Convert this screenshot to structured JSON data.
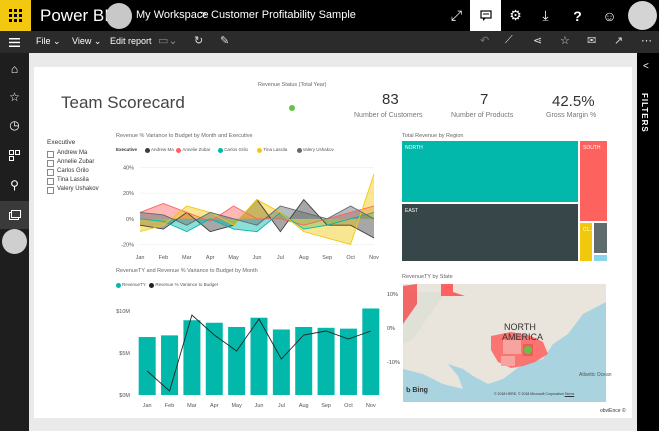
{
  "topbar": {
    "brand": "Power BI",
    "workspace": "My Workspace",
    "separator": ">",
    "report": "Customer Profitability Sample",
    "icons": [
      "expand-icon",
      "comment-icon",
      "gear-icon",
      "download-icon",
      "help-icon",
      "smiley-icon"
    ]
  },
  "commandbar": {
    "file": "File",
    "view": "View",
    "edit": "Edit report",
    "icons_left": [
      "screen-icon",
      "refresh-icon",
      "pin-icon"
    ],
    "icons_right": [
      "undo-icon",
      "chart-icon",
      "share-icon",
      "star-icon",
      "mail-icon",
      "export-icon",
      "more-icon"
    ]
  },
  "rail": [
    "home-icon",
    "star-icon",
    "clock-icon",
    "grid-icon",
    "people-icon",
    "workspace-icon"
  ],
  "filters": {
    "label": "FILTERS",
    "chevron": "<"
  },
  "report": {
    "title": "Team Scorecard",
    "status_title": "Revenue Status (Total Year)",
    "status_color": "#66c247",
    "kpis": [
      {
        "value": "83",
        "label": "Number of Customers"
      },
      {
        "value": "7",
        "label": "Number of Products"
      },
      {
        "value": "42.5%",
        "label": "Gross Margin %"
      }
    ],
    "slicer": {
      "title": "Executive",
      "items": [
        "Andrew Ma",
        "Annelie Zubar",
        "Carlos Grilo",
        "Tina Lassila",
        "Valery Ushakov"
      ]
    },
    "footer": "obviEnce ©"
  },
  "chart_data": [
    {
      "type": "area",
      "title": "Revenue % Variance to Budget by Month and Executive",
      "legend_title": "Executive",
      "categories": [
        "Jan",
        "Feb",
        "Mar",
        "Apr",
        "May",
        "Jun",
        "Jul",
        "Aug",
        "Sep",
        "Oct",
        "Nov"
      ],
      "yticks": [
        "40%",
        "20%",
        "0%",
        "-20%"
      ],
      "ylim": [
        -20,
        40
      ],
      "series": [
        {
          "name": "Andrew Ma",
          "color": "#3c3c3c",
          "values": [
            -5,
            -8,
            5,
            -10,
            -5,
            15,
            -10,
            15,
            -5,
            -5,
            -15
          ]
        },
        {
          "name": "Annelie Zubar",
          "color": "#fd625e",
          "values": [
            5,
            12,
            5,
            -2,
            10,
            0,
            0,
            -5,
            0,
            5,
            10
          ]
        },
        {
          "name": "Carlos Grilo",
          "color": "#01b8aa",
          "values": [
            0,
            -2,
            -10,
            0,
            -8,
            -10,
            5,
            -8,
            -5,
            0,
            5
          ]
        },
        {
          "name": "Tina Lassila",
          "color": "#f2c80f",
          "values": [
            -10,
            -5,
            10,
            5,
            -5,
            15,
            5,
            -10,
            -15,
            -20,
            35
          ]
        },
        {
          "name": "Valery Ushakov",
          "color": "#5f6b6d",
          "values": [
            5,
            3,
            -5,
            5,
            0,
            -5,
            10,
            5,
            0,
            10,
            0
          ]
        }
      ]
    },
    {
      "type": "bar",
      "title": "RevenueTY and Revenue % Variance to Budget by Month",
      "categories": [
        "Jan",
        "Feb",
        "Mar",
        "Apr",
        "May",
        "Jun",
        "Jul",
        "Aug",
        "Sep",
        "Oct",
        "Nov"
      ],
      "yticks_left": [
        "$10M",
        "$5M",
        "$0M"
      ],
      "ylim": [
        0,
        10
      ],
      "series": [
        {
          "name": "RevenueTY",
          "color": "#01b8aa",
          "values": [
            6.9,
            7.1,
            8.9,
            8.6,
            8.1,
            9.2,
            7.8,
            8.1,
            8.0,
            7.9,
            10.3
          ]
        },
        {
          "name": "Revenue % Variance to Budget",
          "color": "#222222",
          "type": "line",
          "values": [
            -5,
            -10,
            9,
            4,
            0,
            8,
            -2,
            4,
            5,
            3,
            5
          ]
        }
      ],
      "yticks_right": [
        "10%",
        "0%",
        "-10%"
      ]
    },
    {
      "type": "treemap",
      "title": "Total Revenue by Region",
      "items": [
        {
          "name": "NORTH",
          "color": "#01b8aa"
        },
        {
          "name": "SOUTH",
          "color": "#fd625e"
        },
        {
          "name": "EAST",
          "color": "#374649"
        },
        {
          "name": "CL...",
          "color": "#f2c80f"
        },
        {
          "name": "",
          "color": "#5f6b6d"
        },
        {
          "name": "",
          "color": "#8ad4eb"
        }
      ]
    },
    {
      "type": "map",
      "title": "RevenueTY by State",
      "labels": [
        "NORTH",
        "AMERICA",
        "Atlantic Ocean"
      ],
      "attribution": "© 2018 HERE, © 2018 Microsoft Corporation",
      "terms": "Terms",
      "bing": "Bing"
    }
  ]
}
